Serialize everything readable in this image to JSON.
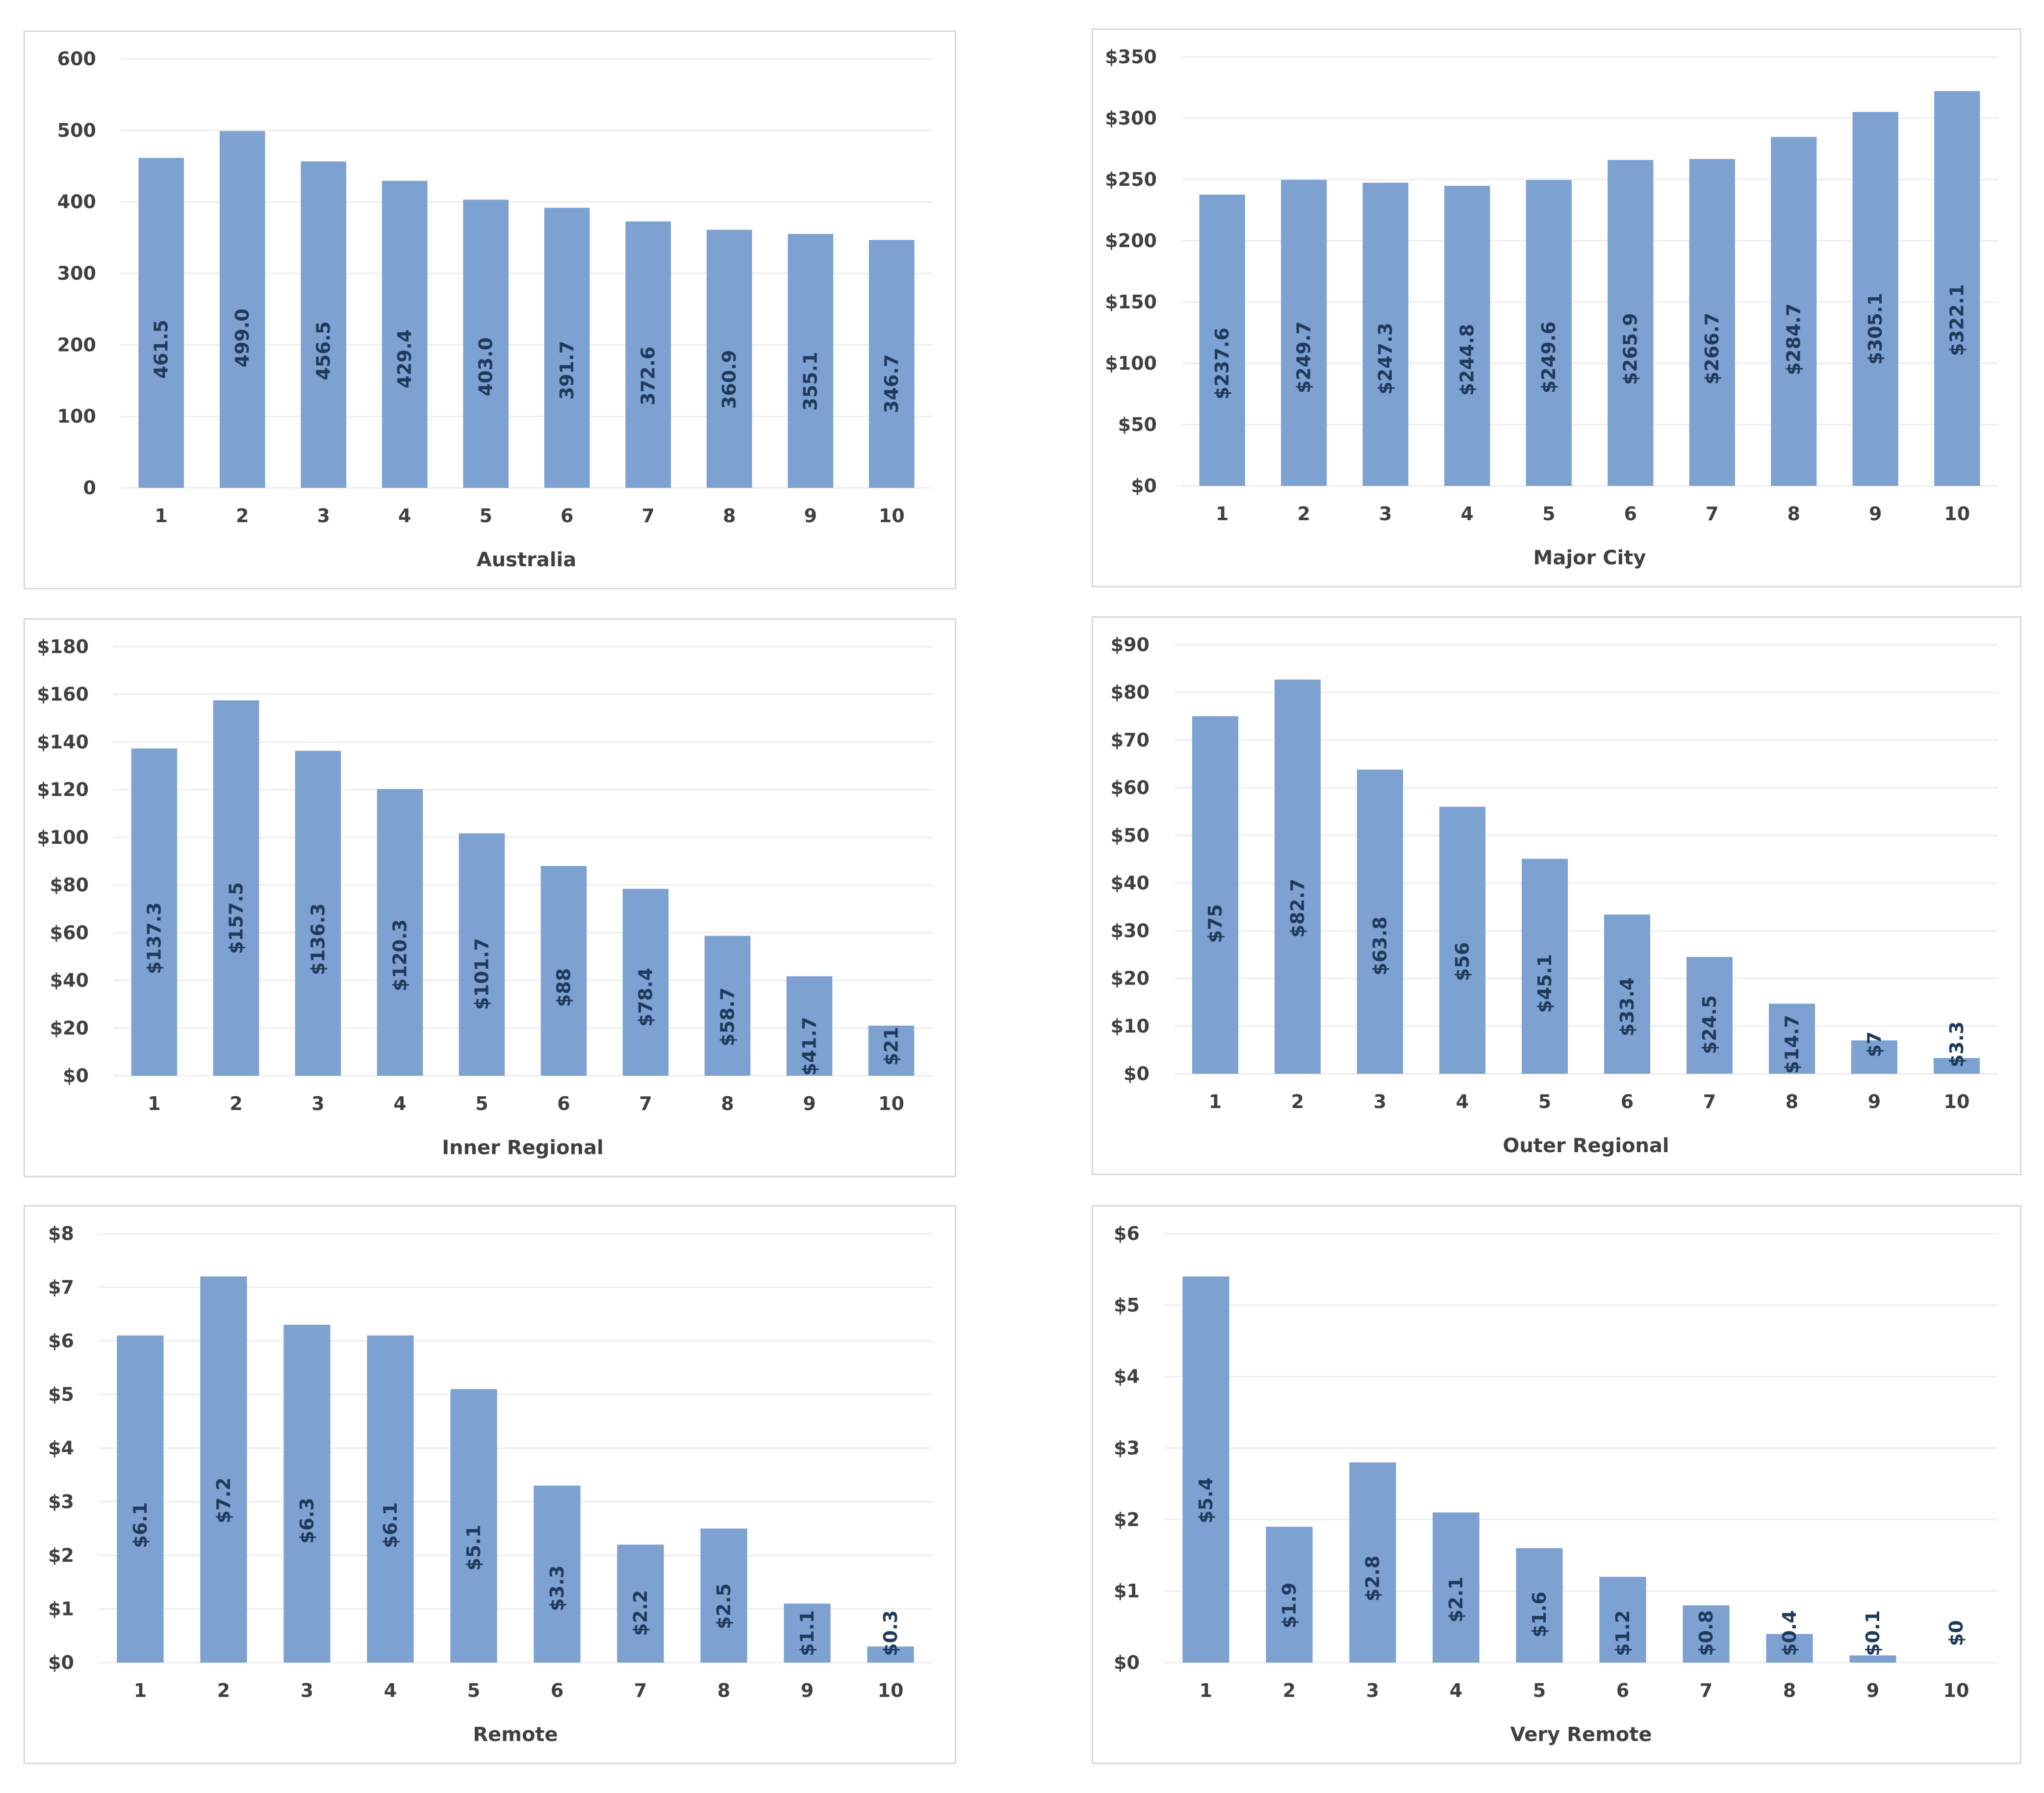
{
  "colors": {
    "bar": "#7da1d1",
    "grid": "#ededed",
    "label": "#1f3a5a",
    "axis_text": "#404040",
    "border": "#d9d9d9"
  },
  "chart_data": [
    {
      "type": "bar",
      "xlabel": "Australia",
      "categories": [
        "1",
        "2",
        "3",
        "4",
        "5",
        "6",
        "7",
        "8",
        "9",
        "10"
      ],
      "values": [
        461.5,
        499.0,
        456.5,
        429.4,
        403.0,
        391.7,
        372.6,
        360.9,
        355.1,
        346.7
      ],
      "data_labels": [
        "461.5",
        "499.0",
        "456.5",
        "429.4",
        "403.0",
        "391.7",
        "372.6",
        "360.9",
        "355.1",
        "346.7"
      ],
      "ylim": [
        0,
        600
      ],
      "yticks": [
        0,
        100,
        200,
        300,
        400,
        500,
        600
      ],
      "ytick_labels": [
        "0",
        "100",
        "200",
        "300",
        "400",
        "500",
        "600"
      ]
    },
    {
      "type": "bar",
      "xlabel": "Major City",
      "categories": [
        "1",
        "2",
        "3",
        "4",
        "5",
        "6",
        "7",
        "8",
        "9",
        "10"
      ],
      "values": [
        237.6,
        249.7,
        247.3,
        244.8,
        249.6,
        265.9,
        266.7,
        284.7,
        305.1,
        322.1
      ],
      "data_labels": [
        "$237.6",
        "$249.7",
        "$247.3",
        "$244.8",
        "$249.6",
        "$265.9",
        "$266.7",
        "$284.7",
        "$305.1",
        "$322.1"
      ],
      "ylim": [
        0,
        350
      ],
      "yticks": [
        0,
        50,
        100,
        150,
        200,
        250,
        300,
        350
      ],
      "ytick_labels": [
        "$0",
        "$50",
        "$100",
        "$150",
        "$200",
        "$250",
        "$300",
        "$350"
      ]
    },
    {
      "type": "bar",
      "xlabel": "Inner Regional",
      "categories": [
        "1",
        "2",
        "3",
        "4",
        "5",
        "6",
        "7",
        "8",
        "9",
        "10"
      ],
      "values": [
        137.3,
        157.5,
        136.3,
        120.3,
        101.7,
        88,
        78.4,
        58.7,
        41.7,
        21
      ],
      "data_labels": [
        "$137.3",
        "$157.5",
        "$136.3",
        "$120.3",
        "$101.7",
        "$88",
        "$78.4",
        "$58.7",
        "$41.7",
        "$21"
      ],
      "ylim": [
        0,
        180
      ],
      "yticks": [
        0,
        20,
        40,
        60,
        80,
        100,
        120,
        140,
        160,
        180
      ],
      "ytick_labels": [
        "$0",
        "$20",
        "$40",
        "$60",
        "$80",
        "$100",
        "$120",
        "$140",
        "$160",
        "$180"
      ]
    },
    {
      "type": "bar",
      "xlabel": "Outer Regional",
      "categories": [
        "1",
        "2",
        "3",
        "4",
        "5",
        "6",
        "7",
        "8",
        "9",
        "10"
      ],
      "values": [
        75,
        82.7,
        63.8,
        56,
        45.1,
        33.4,
        24.5,
        14.7,
        7,
        3.3
      ],
      "data_labels": [
        "$75",
        "$82.7",
        "$63.8",
        "$56",
        "$45.1",
        "$33.4",
        "$24.5",
        "$14.7",
        "$7",
        "$3.3"
      ],
      "ylim": [
        0,
        90
      ],
      "yticks": [
        0,
        10,
        20,
        30,
        40,
        50,
        60,
        70,
        80,
        90
      ],
      "ytick_labels": [
        "$0",
        "$10",
        "$20",
        "$30",
        "$40",
        "$50",
        "$60",
        "$70",
        "$80",
        "$90"
      ]
    },
    {
      "type": "bar",
      "xlabel": "Remote",
      "categories": [
        "1",
        "2",
        "3",
        "4",
        "5",
        "6",
        "7",
        "8",
        "9",
        "10"
      ],
      "values": [
        6.1,
        7.2,
        6.3,
        6.1,
        5.1,
        3.3,
        2.2,
        2.5,
        1.1,
        0.3
      ],
      "data_labels": [
        "$6.1",
        "$7.2",
        "$6.3",
        "$6.1",
        "$5.1",
        "$3.3",
        "$2.2",
        "$2.5",
        "$1.1",
        "$0.3"
      ],
      "ylim": [
        0,
        8
      ],
      "yticks": [
        0,
        1,
        2,
        3,
        4,
        5,
        6,
        7,
        8
      ],
      "ytick_labels": [
        "$0",
        "$1",
        "$2",
        "$3",
        "$4",
        "$5",
        "$6",
        "$7",
        "$8"
      ]
    },
    {
      "type": "bar",
      "xlabel": "Very Remote",
      "categories": [
        "1",
        "2",
        "3",
        "4",
        "5",
        "6",
        "7",
        "8",
        "9",
        "10"
      ],
      "values": [
        5.4,
        1.9,
        2.8,
        2.1,
        1.6,
        1.2,
        0.8,
        0.4,
        0.1,
        0
      ],
      "data_labels": [
        "$5.4",
        "$1.9",
        "$2.8",
        "$2.1",
        "$1.6",
        "$1.2",
        "$0.8",
        "$0.4",
        "$0.1",
        "$0"
      ],
      "ylim": [
        0,
        6
      ],
      "yticks": [
        0,
        1,
        2,
        3,
        4,
        5,
        6
      ],
      "ytick_labels": [
        "$0",
        "$1",
        "$2",
        "$3",
        "$4",
        "$5",
        "$6"
      ]
    }
  ]
}
